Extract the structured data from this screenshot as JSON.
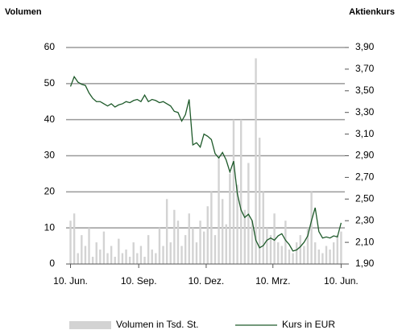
{
  "chart_data": {
    "type": "combo",
    "y_label": "Volumen",
    "y2_label": "Aktienkurs",
    "x": [
      0,
      5,
      10,
      15,
      20,
      25,
      30,
      35,
      40,
      45,
      50,
      55,
      60,
      65,
      70,
      75,
      80,
      85,
      90,
      95,
      100,
      105,
      110,
      115,
      120,
      125,
      130,
      135,
      140,
      145,
      150,
      155,
      160,
      165,
      170,
      175,
      180,
      185,
      190,
      195,
      200,
      205,
      210,
      215,
      220,
      225,
      230,
      235,
      240,
      245,
      250,
      255,
      260,
      265,
      270,
      275,
      280,
      285,
      290,
      295,
      300,
      305,
      310,
      315,
      320,
      325,
      330,
      335,
      340,
      345,
      350,
      355,
      360,
      365
    ],
    "xlim": [
      -6,
      370
    ],
    "xticks": [
      {
        "value": 0,
        "label": "10. Jun."
      },
      {
        "value": 92,
        "label": "10. Sep."
      },
      {
        "value": 183,
        "label": "10. Dez."
      },
      {
        "value": 273,
        "label": "10. Mrz."
      },
      {
        "value": 365,
        "label": "10. Jun."
      }
    ],
    "ylim": [
      0,
      60
    ],
    "yticks": [
      0,
      10,
      20,
      30,
      40,
      50,
      60
    ],
    "y2lim": [
      1.9,
      3.9
    ],
    "y2ticks": [
      {
        "value": 1.9,
        "label": "1,90"
      },
      {
        "value": 2.1,
        "label": "2,10"
      },
      {
        "value": 2.3,
        "label": "2,30"
      },
      {
        "value": 2.5,
        "label": "2,50"
      },
      {
        "value": 2.7,
        "label": "2,70"
      },
      {
        "value": 2.9,
        "label": "2,90"
      },
      {
        "value": 3.1,
        "label": "3,10"
      },
      {
        "value": 3.3,
        "label": "3,30"
      },
      {
        "value": 3.5,
        "label": "3,50"
      },
      {
        "value": 3.7,
        "label": "3,70"
      },
      {
        "value": 3.9,
        "label": "3,90"
      }
    ],
    "grid": true,
    "series": [
      {
        "name": "Volumen in Tsd. St.",
        "type": "bar",
        "color": "#d3d3d3",
        "values": [
          12,
          14,
          3,
          8,
          5,
          10,
          2,
          6,
          4,
          9,
          3,
          5,
          2,
          7,
          3,
          4,
          2,
          6,
          3,
          5,
          2,
          8,
          4,
          3,
          10,
          5,
          18,
          6,
          15,
          12,
          5,
          8,
          14,
          10,
          6,
          12,
          9,
          16,
          20,
          8,
          30,
          18,
          11,
          25,
          40,
          22,
          40,
          15,
          28,
          12,
          57,
          35,
          20,
          10,
          8,
          14,
          6,
          5,
          12,
          4,
          3,
          6,
          8,
          5,
          10,
          20,
          6,
          4,
          3,
          5,
          4,
          6,
          8,
          9
        ]
      },
      {
        "name": "Kurs in EUR",
        "type": "line",
        "axis": "y2",
        "color": "#1e5a2a",
        "values": [
          3.54,
          3.63,
          3.58,
          3.56,
          3.55,
          3.48,
          3.43,
          3.4,
          3.4,
          3.38,
          3.36,
          3.38,
          3.35,
          3.37,
          3.38,
          3.4,
          3.39,
          3.41,
          3.42,
          3.4,
          3.46,
          3.4,
          3.42,
          3.41,
          3.39,
          3.4,
          3.38,
          3.36,
          3.31,
          3.3,
          3.22,
          3.28,
          3.42,
          3.0,
          3.02,
          2.98,
          3.1,
          3.08,
          3.05,
          2.92,
          2.88,
          2.93,
          2.86,
          2.75,
          2.85,
          2.55,
          2.4,
          2.33,
          2.36,
          2.3,
          2.12,
          2.05,
          2.07,
          2.12,
          2.14,
          2.12,
          2.16,
          2.18,
          2.12,
          2.08,
          2.02,
          2.03,
          2.06,
          2.1,
          2.16,
          2.3,
          2.42,
          2.2,
          2.14,
          2.15,
          2.14,
          2.16,
          2.15,
          2.28
        ]
      }
    ]
  }
}
